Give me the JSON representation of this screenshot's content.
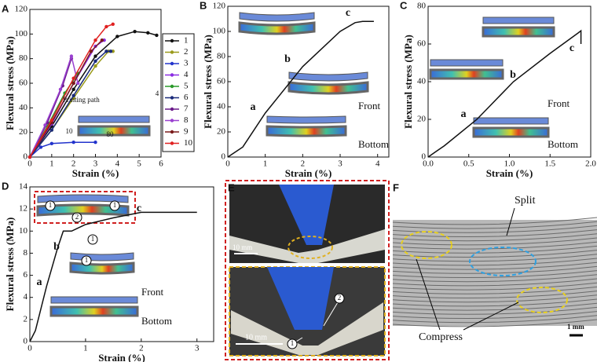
{
  "chart_data": [
    {
      "type": "line",
      "panel": "A",
      "xlabel": "Strain (%)",
      "ylabel": "Flexural stress (MPa)",
      "xlim": [
        0,
        6
      ],
      "ylim": [
        0,
        120
      ],
      "xticks": [
        0,
        1,
        2,
        3,
        4,
        5,
        6
      ],
      "yticks": [
        0,
        20,
        40,
        60,
        80,
        100,
        120
      ],
      "markers": true,
      "series": [
        {
          "name": "1",
          "color": "#111111",
          "x": [
            0,
            1,
            2,
            3,
            4,
            4.8,
            5.4,
            5.8
          ],
          "values": [
            0,
            25,
            55,
            82,
            98,
            102,
            101,
            99
          ]
        },
        {
          "name": "2",
          "color": "#9a9a1a",
          "x": [
            0,
            1,
            2,
            3,
            3.6,
            3.8
          ],
          "values": [
            0,
            22,
            48,
            74,
            86,
            86
          ]
        },
        {
          "name": "3",
          "color": "#2233cc",
          "x": [
            0,
            0.5,
            1,
            2,
            3
          ],
          "values": [
            0,
            8,
            11,
            12,
            12
          ]
        },
        {
          "name": "4",
          "color": "#8a2be2",
          "x": [
            0,
            1,
            2,
            3,
            3.4
          ],
          "values": [
            0,
            27,
            60,
            90,
            95
          ]
        },
        {
          "name": "5",
          "color": "#2a9a2a",
          "x": [
            0,
            0.8,
            1.6,
            2.2
          ],
          "values": [
            0,
            25,
            52,
            68
          ]
        },
        {
          "name": "6",
          "color": "#1a2a7a",
          "x": [
            0,
            1,
            2,
            3,
            3.5,
            3.7
          ],
          "values": [
            0,
            22,
            50,
            78,
            86,
            86
          ]
        },
        {
          "name": "7",
          "color": "#6a1a8a",
          "x": [
            0,
            0.8,
            1.5,
            1.9
          ],
          "values": [
            0,
            28,
            58,
            80
          ]
        },
        {
          "name": "8",
          "color": "#9a40d0",
          "x": [
            0,
            0.7,
            1.4,
            1.9,
            2.2
          ],
          "values": [
            0,
            26,
            55,
            82,
            60
          ]
        },
        {
          "name": "9",
          "color": "#7a1a1a",
          "x": [
            0,
            1,
            2,
            2.8,
            3.3
          ],
          "values": [
            0,
            28,
            60,
            86,
            95
          ]
        },
        {
          "name": "10",
          "color": "#e02020",
          "x": [
            0,
            1,
            2,
            3,
            3.5,
            3.8
          ],
          "values": [
            0,
            30,
            64,
            95,
            106,
            108
          ]
        }
      ],
      "annotations": [
        "Printing path",
        "80",
        "10",
        "4"
      ]
    },
    {
      "type": "line",
      "panel": "B",
      "xlabel": "Strain (%)",
      "ylabel": "Flexural stress (MPa)",
      "xlim": [
        0,
        4.3
      ],
      "ylim": [
        0,
        120
      ],
      "xticks": [
        0,
        1,
        2,
        3,
        4
      ],
      "yticks": [
        0,
        20,
        40,
        60,
        80,
        100,
        120
      ],
      "markers": false,
      "series": [
        {
          "name": "B",
          "color": "#111111",
          "x": [
            0,
            0.2,
            0.4,
            1,
            2,
            3,
            3.4,
            3.6,
            3.9
          ],
          "values": [
            0,
            4,
            8,
            35,
            72,
            100,
            107,
            108,
            108
          ]
        }
      ],
      "annotations": [
        "a",
        "b",
        "c",
        "Front",
        "Bottom"
      ]
    },
    {
      "type": "line",
      "panel": "C",
      "xlabel": "Strain (%)",
      "ylabel": "Flexural stress (MPa)",
      "xlim": [
        0,
        2
      ],
      "ylim": [
        0,
        80
      ],
      "xticks": [
        {
          "value": 0,
          "label": "0.0"
        },
        {
          "value": 0.5,
          "label": "0.5"
        },
        {
          "value": 1,
          "label": "1.0"
        },
        {
          "value": 1.5,
          "label": "1.5"
        },
        {
          "value": 2,
          "label": "2.0"
        }
      ],
      "yticks": [
        0,
        20,
        40,
        60,
        80
      ],
      "markers": false,
      "series": [
        {
          "name": "C",
          "color": "#111111",
          "x": [
            0,
            0.1,
            0.2,
            0.6,
            1.05,
            1.5,
            1.85,
            1.88,
            1.88
          ],
          "values": [
            0,
            3,
            6,
            20,
            40,
            55,
            66,
            67,
            60
          ]
        }
      ],
      "annotations": [
        "a",
        "b",
        "c",
        "Front",
        "Bottom"
      ]
    },
    {
      "type": "line",
      "panel": "D",
      "xlabel": "Strain (%)",
      "ylabel": "Flexural stress (MPa)",
      "xlim": [
        0,
        3.3
      ],
      "ylim": [
        0,
        14
      ],
      "xticks": [
        0,
        1,
        2,
        3
      ],
      "yticks": [
        0,
        2,
        4,
        6,
        8,
        10,
        12,
        14
      ],
      "markers": false,
      "series": [
        {
          "name": "D",
          "color": "#111111",
          "x": [
            0,
            0.1,
            0.3,
            0.5,
            0.6,
            0.75,
            1,
            1.5,
            2,
            2.5,
            3
          ],
          "values": [
            0,
            1,
            5,
            8.5,
            10,
            10,
            10.6,
            11.2,
            11.7,
            11.7,
            11.7
          ]
        }
      ],
      "annotations": [
        "a",
        "b",
        "c",
        "Front",
        "Bottom",
        "1",
        "1",
        "2",
        "1",
        "1"
      ]
    }
  ],
  "panels": [
    {
      "panel": "E",
      "labels": [
        "10 mm",
        "10 mm",
        "1",
        "2"
      ]
    },
    {
      "panel": "F",
      "labels": [
        "Split",
        "Compress",
        "1 mm"
      ]
    }
  ]
}
